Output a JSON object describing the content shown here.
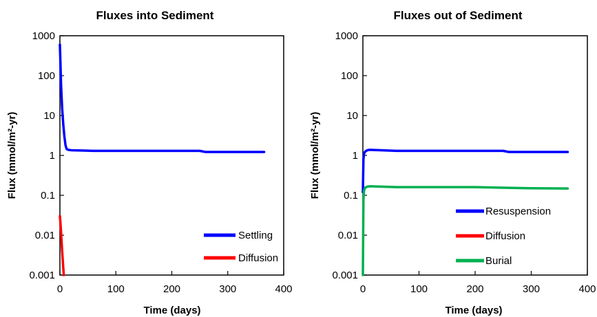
{
  "chart_data": [
    {
      "type": "line",
      "title": "Fluxes into Sediment",
      "xlabel": "Time (days)",
      "ylabel": "Flux (mmol/m²-yr)",
      "xlim": [
        0,
        400
      ],
      "ylim": [
        0.001,
        1000
      ],
      "yscale": "log",
      "x_ticks": [
        "0",
        "100",
        "200",
        "300",
        "400"
      ],
      "y_ticks": [
        "0.001",
        "0.01",
        "0.1",
        "1",
        "10",
        "100",
        "1000"
      ],
      "grid": false,
      "legend_position": "bottom-right",
      "series": [
        {
          "name": "Settling",
          "color": "#0000ff",
          "x": [
            0,
            1,
            2,
            4,
            6,
            8,
            10,
            12,
            15,
            20,
            60,
            100,
            200,
            250,
            260,
            300,
            365
          ],
          "y": [
            600,
            200,
            60,
            15,
            6,
            3,
            1.8,
            1.45,
            1.38,
            1.35,
            1.3,
            1.3,
            1.3,
            1.3,
            1.22,
            1.22,
            1.22
          ]
        },
        {
          "name": "Diffusion",
          "color": "#ff0000",
          "x": [
            0,
            1,
            2,
            3,
            4,
            5,
            6,
            7
          ],
          "y": [
            0.03,
            0.02,
            0.012,
            0.007,
            0.004,
            0.0025,
            0.0015,
            0.001
          ]
        }
      ]
    },
    {
      "type": "line",
      "title": "Fluxes out of Sediment",
      "xlabel": "Time (days)",
      "ylabel": "Flux (mmol/m²-yr)",
      "xlim": [
        0,
        400
      ],
      "ylim": [
        0.001,
        1000
      ],
      "yscale": "log",
      "x_ticks": [
        "0",
        "100",
        "200",
        "300",
        "400"
      ],
      "y_ticks": [
        "0.001",
        "0.01",
        "0.1",
        "1",
        "10",
        "100",
        "1000"
      ],
      "grid": false,
      "legend_position": "bottom-right",
      "series": [
        {
          "name": "Resuspension",
          "color": "#0000ff",
          "x": [
            0,
            1,
            2,
            4,
            8,
            12,
            60,
            100,
            200,
            250,
            260,
            300,
            365
          ],
          "y": [
            0.12,
            0.8,
            1.1,
            1.25,
            1.35,
            1.38,
            1.3,
            1.3,
            1.3,
            1.3,
            1.22,
            1.22,
            1.22
          ]
        },
        {
          "name": "Diffusion",
          "color": "#ff0000",
          "x": [],
          "y": []
        },
        {
          "name": "Burial",
          "color": "#00b050",
          "x": [
            0,
            0.5,
            1,
            2,
            4,
            8,
            12,
            60,
            100,
            200,
            250,
            300,
            365
          ],
          "y": [
            0.001,
            0.01,
            0.08,
            0.13,
            0.155,
            0.165,
            0.168,
            0.16,
            0.16,
            0.16,
            0.155,
            0.15,
            0.148
          ]
        }
      ]
    }
  ]
}
